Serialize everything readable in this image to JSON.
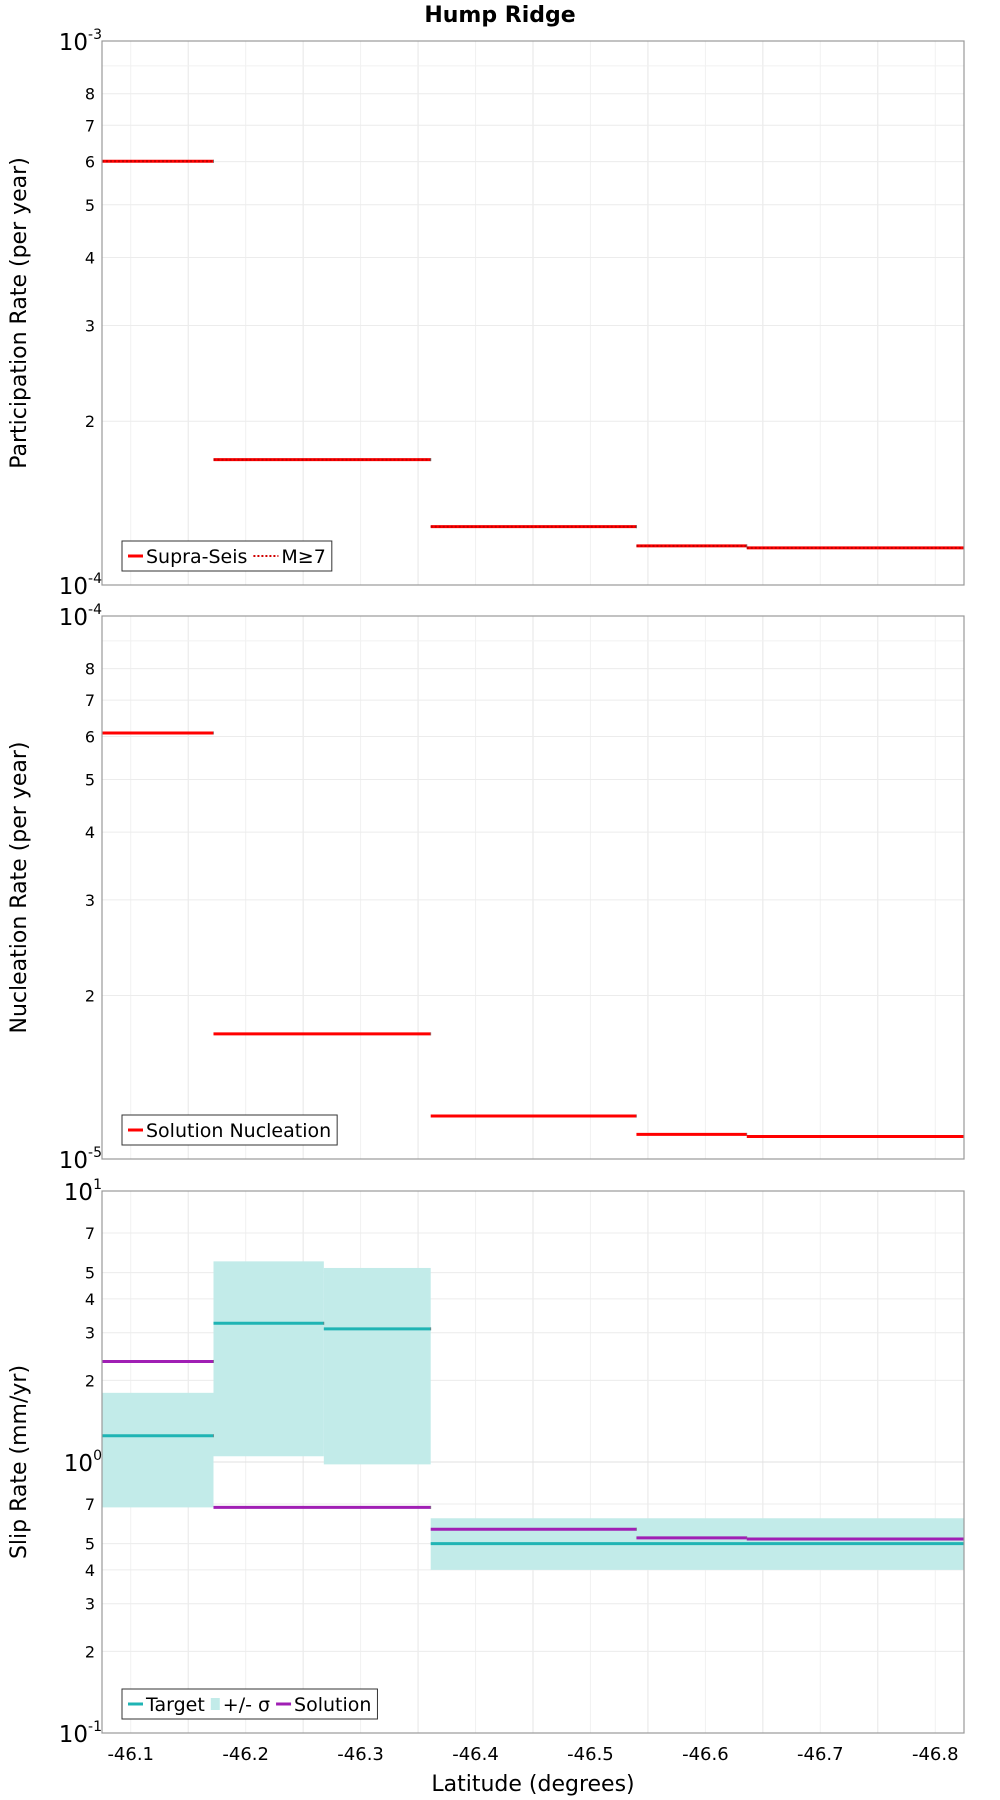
{
  "title": "Hump Ridge",
  "xlabel": "Latitude (degrees)",
  "x_ticks": [
    "-46.1",
    "-46.2",
    "-46.3",
    "-46.4",
    "-46.5",
    "-46.6",
    "-46.7",
    "-46.8"
  ],
  "colors": {
    "red": "#ff0000",
    "teal": "#1fb4b4",
    "teal_fill": "#c2ebe9",
    "purple": "#a01fb4"
  },
  "chart_data": [
    {
      "type": "line",
      "ylabel": "Participation Rate (per year)",
      "yscale": "log",
      "xlim": [
        -46.075,
        -46.825
      ],
      "ylim": [
        0.0001,
        0.001
      ],
      "major_ticks": [
        {
          "base": "10",
          "exp": "-3",
          "value": 0.001
        },
        {
          "base": "10",
          "exp": "-4",
          "value": 0.0001
        }
      ],
      "minor_ticks": [
        {
          "label": "8",
          "value": 0.0008
        },
        {
          "label": "7",
          "value": 0.0007
        },
        {
          "label": "6",
          "value": 0.0006
        },
        {
          "label": "5",
          "value": 0.0005
        },
        {
          "label": "4",
          "value": 0.0004
        },
        {
          "label": "3",
          "value": 0.0003
        },
        {
          "label": "2",
          "value": 0.0002
        }
      ],
      "legend": {
        "position": "bottom-left",
        "entries": [
          {
            "label": "Supra-Seis",
            "style": "solid",
            "color": "#ff0000"
          },
          {
            "label": "M≥7",
            "style": "dotted",
            "color": "#ff0000"
          }
        ]
      },
      "series": [
        {
          "name": "Supra-Seis",
          "color": "#ff0000",
          "style": "solid",
          "segments": [
            [
              -46.075,
              -46.172,
              0.000601
            ],
            [
              -46.172,
              -46.361,
              0.00017
            ],
            [
              -46.361,
              -46.54,
              0.000128
            ],
            [
              -46.54,
              -46.636,
              0.000118
            ],
            [
              -46.636,
              -46.825,
              0.000117
            ]
          ]
        },
        {
          "name": "M≥7",
          "color": "#ff0000",
          "style": "dotted",
          "segments": [
            [
              -46.075,
              -46.172,
              0.000601
            ],
            [
              -46.172,
              -46.361,
              0.00017
            ],
            [
              -46.361,
              -46.54,
              0.000128
            ],
            [
              -46.54,
              -46.636,
              0.000118
            ],
            [
              -46.636,
              -46.825,
              0.000117
            ]
          ]
        }
      ]
    },
    {
      "type": "line",
      "ylabel": "Nucleation Rate (per year)",
      "yscale": "log",
      "xlim": [
        -46.075,
        -46.825
      ],
      "ylim": [
        1e-05,
        0.0001
      ],
      "major_ticks": [
        {
          "base": "10",
          "exp": "-4",
          "value": 0.0001
        },
        {
          "base": "10",
          "exp": "-5",
          "value": 1e-05
        }
      ],
      "minor_ticks": [
        {
          "label": "8",
          "value": 8e-05
        },
        {
          "label": "7",
          "value": 7e-05
        },
        {
          "label": "6",
          "value": 6e-05
        },
        {
          "label": "5",
          "value": 5e-05
        },
        {
          "label": "4",
          "value": 4e-05
        },
        {
          "label": "3",
          "value": 3e-05
        },
        {
          "label": "2",
          "value": 2e-05
        }
      ],
      "legend": {
        "position": "bottom-left",
        "entries": [
          {
            "label": "Solution Nucleation",
            "style": "solid",
            "color": "#ff0000"
          }
        ]
      },
      "series": [
        {
          "name": "Solution Nucleation",
          "color": "#ff0000",
          "style": "solid",
          "segments": [
            [
              -46.075,
              -46.172,
              6.09e-05
            ],
            [
              -46.172,
              -46.361,
              1.7e-05
            ],
            [
              -46.361,
              -46.54,
              1.2e-05
            ],
            [
              -46.54,
              -46.636,
              1.11e-05
            ],
            [
              -46.636,
              -46.825,
              1.1e-05
            ]
          ]
        }
      ]
    },
    {
      "type": "line",
      "ylabel": "Slip Rate (mm/yr)",
      "yscale": "log",
      "xlim": [
        -46.075,
        -46.825
      ],
      "ylim": [
        0.1,
        10
      ],
      "major_ticks": [
        {
          "base": "10",
          "exp": "1",
          "value": 10
        },
        {
          "base": "10",
          "exp": "0",
          "value": 1
        },
        {
          "base": "10",
          "exp": "-1",
          "value": 0.1
        }
      ],
      "minor_ticks": [
        {
          "label": "7",
          "value": 7
        },
        {
          "label": "5",
          "value": 5
        },
        {
          "label": "4",
          "value": 4
        },
        {
          "label": "3",
          "value": 3
        },
        {
          "label": "2",
          "value": 2
        },
        {
          "label": "7",
          "value": 0.7
        },
        {
          "label": "5",
          "value": 0.5
        },
        {
          "label": "4",
          "value": 0.4
        },
        {
          "label": "3",
          "value": 0.3
        },
        {
          "label": "2",
          "value": 0.2
        }
      ],
      "legend": {
        "position": "bottom-left",
        "entries": [
          {
            "label": "Target",
            "style": "solid",
            "color": "#1fb4b4"
          },
          {
            "label": "+/- σ",
            "style": "fill",
            "color": "#c2ebe9"
          },
          {
            "label": "Solution",
            "style": "solid",
            "color": "#a01fb4"
          }
        ]
      },
      "bands": [
        [
          -46.075,
          -46.172,
          0.68,
          1.8
        ],
        [
          -46.172,
          -46.268,
          1.05,
          5.5
        ],
        [
          -46.268,
          -46.361,
          0.98,
          5.2
        ],
        [
          -46.361,
          -46.825,
          0.4,
          0.62
        ]
      ],
      "series": [
        {
          "name": "Target",
          "color": "#1fb4b4",
          "style": "solid",
          "segments": [
            [
              -46.075,
              -46.172,
              1.25
            ],
            [
              -46.172,
              -46.268,
              3.25
            ],
            [
              -46.268,
              -46.361,
              3.1
            ],
            [
              -46.361,
              -46.825,
              0.5
            ]
          ]
        },
        {
          "name": "Solution",
          "color": "#a01fb4",
          "style": "solid",
          "segments": [
            [
              -46.075,
              -46.172,
              2.35
            ],
            [
              -46.172,
              -46.361,
              0.68
            ],
            [
              -46.361,
              -46.54,
              0.565
            ],
            [
              -46.54,
              -46.636,
              0.525
            ],
            [
              -46.636,
              -46.825,
              0.52
            ]
          ]
        }
      ]
    }
  ]
}
